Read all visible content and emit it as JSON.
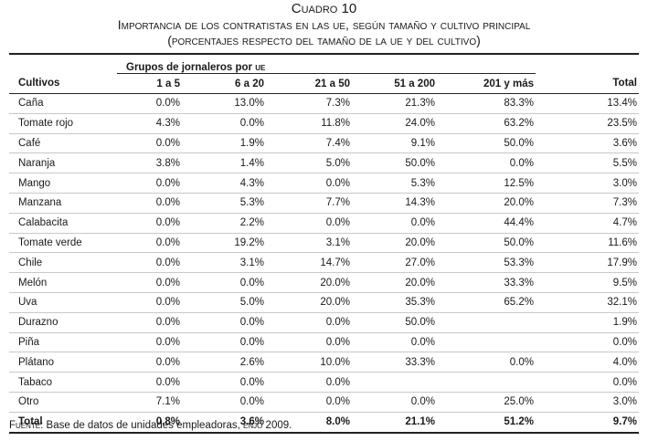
{
  "caption": {
    "number": "Cuadro 10",
    "title": "Importancia de los contratistas en las ue, según tamaño y cultivo principal",
    "subtitle": "(porcentajes respecto del tamaño de la ue y del cultivo)"
  },
  "table": {
    "group_label": "Grupos de jornaleros por",
    "group_label_abbr": "ue",
    "headers": [
      "Cultivos",
      "1 a 5",
      "6 a 20",
      "21 a 50",
      "51 a 200",
      "201 y más",
      "Total"
    ],
    "rows": [
      [
        "Caña",
        "0.0%",
        "13.0%",
        "7.3%",
        "21.3%",
        "83.3%",
        "13.4%"
      ],
      [
        "Tomate rojo",
        "4.3%",
        "0.0%",
        "11.8%",
        "24.0%",
        "63.2%",
        "23.5%"
      ],
      [
        "Café",
        "0.0%",
        "1.9%",
        "7.4%",
        "9.1%",
        "50.0%",
        "3.6%"
      ],
      [
        "Naranja",
        "3.8%",
        "1.4%",
        "5.0%",
        "50.0%",
        "0.0%",
        "5.5%"
      ],
      [
        "Mango",
        "0.0%",
        "4.3%",
        "0.0%",
        "5.3%",
        "12.5%",
        "3.0%"
      ],
      [
        "Manzana",
        "0.0%",
        "5.3%",
        "7.7%",
        "14.3%",
        "20.0%",
        "7.3%"
      ],
      [
        "Calabacita",
        "0.0%",
        "2.2%",
        "0.0%",
        "0.0%",
        "44.4%",
        "4.7%"
      ],
      [
        "Tomate verde",
        "0.0%",
        "19.2%",
        "3.1%",
        "20.0%",
        "50.0%",
        "11.6%"
      ],
      [
        "Chile",
        "0.0%",
        "3.1%",
        "14.7%",
        "27.0%",
        "53.3%",
        "17.9%"
      ],
      [
        "Melón",
        "0.0%",
        "0.0%",
        "20.0%",
        "20.0%",
        "33.3%",
        "9.5%"
      ],
      [
        "Uva",
        "0.0%",
        "5.0%",
        "20.0%",
        "35.3%",
        "65.2%",
        "32.1%"
      ],
      [
        "Durazno",
        "0.0%",
        "0.0%",
        "0.0%",
        "50.0%",
        "",
        "1.9%"
      ],
      [
        "Piña",
        "0.0%",
        "0.0%",
        "0.0%",
        "0.0%",
        "",
        "0.0%"
      ],
      [
        "Plátano",
        "0.0%",
        "2.6%",
        "10.0%",
        "33.3%",
        "0.0%",
        "4.0%"
      ],
      [
        "Tabaco",
        "0.0%",
        "0.0%",
        "0.0%",
        "",
        "",
        "0.0%"
      ],
      [
        "Otro",
        "7.1%",
        "0.0%",
        "0.0%",
        "0.0%",
        "25.0%",
        "3.0%"
      ]
    ],
    "total": [
      "Total",
      "0.8%",
      "3.6%",
      "8.0%",
      "21.1%",
      "51.2%",
      "9.7%"
    ]
  },
  "source": {
    "label": "Fuente",
    "text_before": "Base de datos de unidades empleadoras,",
    "abbr": "enjo",
    "text_after": "2009."
  }
}
